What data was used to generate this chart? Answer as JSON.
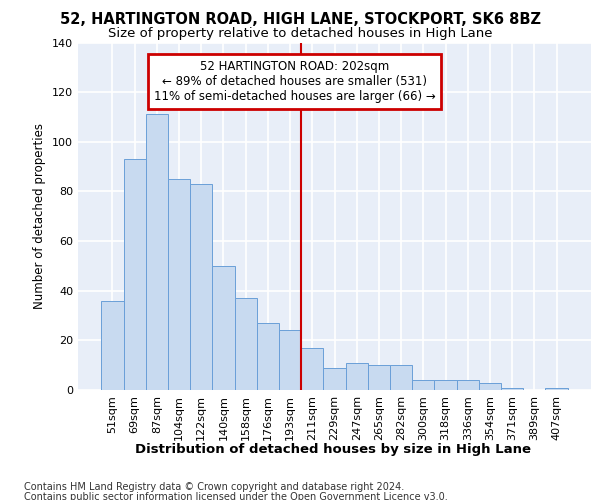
{
  "title1": "52, HARTINGTON ROAD, HIGH LANE, STOCKPORT, SK6 8BZ",
  "title2": "Size of property relative to detached houses in High Lane",
  "xlabel": "Distribution of detached houses by size in High Lane",
  "ylabel": "Number of detached properties",
  "categories": [
    "51sqm",
    "69sqm",
    "87sqm",
    "104sqm",
    "122sqm",
    "140sqm",
    "158sqm",
    "176sqm",
    "193sqm",
    "211sqm",
    "229sqm",
    "247sqm",
    "265sqm",
    "282sqm",
    "300sqm",
    "318sqm",
    "336sqm",
    "354sqm",
    "371sqm",
    "389sqm",
    "407sqm"
  ],
  "values": [
    36,
    93,
    111,
    85,
    83,
    50,
    37,
    27,
    24,
    17,
    9,
    11,
    10,
    10,
    4,
    4,
    4,
    3,
    1,
    0,
    1
  ],
  "bar_color": "#c8daf0",
  "bar_edge_color": "#6a9fd8",
  "background_color": "#e8eef8",
  "grid_color": "#ffffff",
  "vline_color": "#cc0000",
  "vline_x": 8.5,
  "annotation_line1": "52 HARTINGTON ROAD: 202sqm",
  "annotation_line2": "← 89% of detached houses are smaller (531)",
  "annotation_line3": "11% of semi-detached houses are larger (66) →",
  "annotation_box_color": "#cc0000",
  "footer1": "Contains HM Land Registry data © Crown copyright and database right 2024.",
  "footer2": "Contains public sector information licensed under the Open Government Licence v3.0.",
  "ylim": [
    0,
    140
  ],
  "yticks": [
    0,
    20,
    40,
    60,
    80,
    100,
    120,
    140
  ],
  "fig_bg": "#ffffff",
  "title1_fontsize": 10.5,
  "title2_fontsize": 9.5,
  "ylabel_fontsize": 8.5,
  "xlabel_fontsize": 9.5,
  "tick_fontsize": 8,
  "footer_fontsize": 7,
  "annot_fontsize": 8.5
}
